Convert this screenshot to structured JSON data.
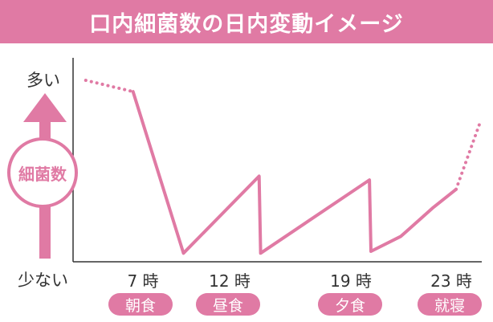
{
  "title": "口内細菌数の日内変動イメージ",
  "colors": {
    "accent": "#e07aa4",
    "axis": "#333333"
  },
  "chart_data": {
    "type": "line",
    "title": "口内細菌数の日内変動イメージ",
    "ylabel": "細菌数",
    "y_top_label": "多い",
    "y_bottom_label": "少ない",
    "ylim": [
      0,
      100
    ],
    "xlim": [
      0,
      24
    ],
    "xticks": [
      {
        "value": 7,
        "label": "7 時",
        "meal": "朝食"
      },
      {
        "value": 12,
        "label": "12 時",
        "meal": "昼食"
      },
      {
        "value": 19,
        "label": "19 時",
        "meal": "夕食"
      },
      {
        "value": 23,
        "label": "23 時",
        "meal": "就寝"
      }
    ],
    "segments": [
      {
        "style": "dotted",
        "points": [
          [
            0.5,
            94
          ],
          [
            3.5,
            88
          ]
        ]
      },
      {
        "style": "solid",
        "points": [
          [
            3.5,
            88
          ],
          [
            6.7,
            2
          ],
          [
            11.5,
            43
          ],
          [
            11.6,
            2
          ],
          [
            18.5,
            41
          ],
          [
            18.6,
            3
          ],
          [
            20.5,
            11
          ],
          [
            22.5,
            26
          ],
          [
            24,
            36
          ]
        ]
      },
      {
        "style": "dotted",
        "points": [
          [
            24,
            36
          ],
          [
            25.5,
            71
          ]
        ]
      }
    ]
  }
}
